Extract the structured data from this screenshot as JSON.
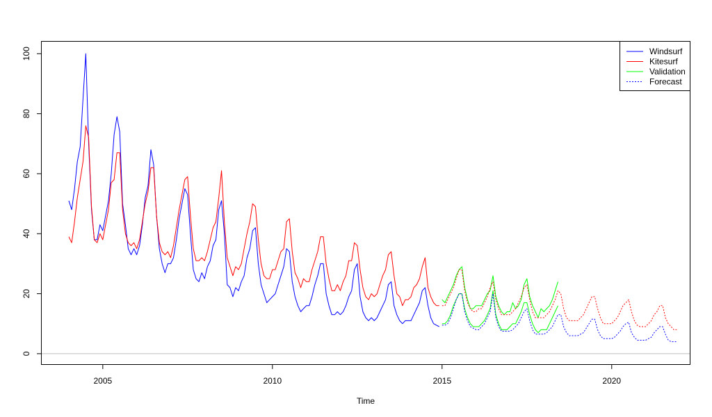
{
  "chart_data": {
    "type": "line",
    "title": "",
    "xlabel": "Time",
    "ylabel": "",
    "xlim": [
      2003.2,
      2022.3
    ],
    "ylim": [
      -3.5,
      104
    ],
    "x_ticks": [
      2005,
      2010,
      2015,
      2020
    ],
    "y_ticks": [
      0,
      20,
      40,
      60,
      80,
      100
    ],
    "reference_line": {
      "y": 0,
      "color": "#bebebe"
    },
    "legend": {
      "position": "top-right",
      "entries": [
        {
          "label": "Windsurf",
          "color": "#0000ff",
          "style": "solid"
        },
        {
          "label": "Kitesurf",
          "color": "#ff0000",
          "style": "solid"
        },
        {
          "label": "Validation",
          "color": "#00ff00",
          "style": "solid"
        },
        {
          "label": "Forecast",
          "color": "#0000ff",
          "style": "dotted"
        }
      ]
    },
    "series": [
      {
        "name": "Windsurf",
        "color": "#0000ff",
        "style": "solid",
        "start": [
          2004,
          1
        ],
        "values": [
          51,
          48,
          55,
          64,
          69,
          85,
          100,
          70,
          48,
          38,
          38,
          43,
          41,
          46,
          51,
          60,
          73,
          79,
          74,
          50,
          43,
          35,
          33,
          35,
          33,
          36,
          43,
          52,
          56,
          68,
          63,
          46,
          35,
          30,
          27,
          30,
          30,
          32,
          38,
          45,
          50,
          55,
          53,
          40,
          28,
          25,
          24,
          27,
          25,
          29,
          31,
          36,
          38,
          48,
          51,
          40,
          23,
          22,
          19,
          22,
          21,
          24,
          26,
          32,
          35,
          41,
          42,
          30,
          23,
          20,
          17,
          18,
          19,
          20,
          23,
          26,
          29,
          35,
          34,
          24,
          19,
          16,
          14,
          15,
          16,
          16,
          19,
          23,
          26,
          30,
          30,
          20,
          16,
          13,
          13,
          14,
          13,
          14,
          16,
          19,
          21,
          28,
          30,
          19,
          14,
          12,
          11,
          12,
          11,
          12,
          14,
          16,
          18,
          23,
          24,
          16,
          13,
          11,
          10,
          11,
          11,
          11,
          13,
          15,
          17,
          21,
          22,
          16,
          12,
          10,
          9.5,
          9
        ]
      },
      {
        "name": "Kitesurf",
        "color": "#ff0000",
        "style": "solid",
        "start": [
          2004,
          1
        ],
        "values": [
          39,
          37,
          44,
          52,
          58,
          64,
          76,
          72,
          49,
          38,
          37,
          40,
          38,
          43,
          48,
          57,
          58,
          67,
          67,
          48,
          40,
          37,
          36,
          37,
          35,
          38,
          44,
          50,
          54,
          62,
          62,
          46,
          37,
          34,
          33,
          34,
          32,
          36,
          42,
          48,
          53,
          58,
          59,
          46,
          35,
          31,
          31,
          32,
          31,
          34,
          38,
          42,
          44,
          52,
          61,
          44,
          32,
          29,
          26,
          29,
          28,
          30,
          35,
          40,
          44,
          50,
          49,
          38,
          30,
          26,
          25,
          25,
          28,
          28,
          31,
          34,
          35,
          44,
          45,
          34,
          27,
          25,
          22,
          25,
          24,
          24,
          28,
          31,
          34,
          39,
          39,
          30,
          25,
          21,
          21,
          23,
          21,
          24,
          26,
          31,
          31,
          37,
          36,
          28,
          22,
          19,
          18,
          20,
          19,
          20,
          23,
          26,
          28,
          33,
          34,
          26,
          20,
          19,
          16,
          18,
          18,
          19,
          22,
          23,
          25,
          29,
          32,
          22,
          19,
          17,
          16,
          16
        ]
      },
      {
        "name": "Validation (Kitesurf)",
        "color": "#00ff00",
        "style": "solid",
        "start": [
          2015,
          1
        ],
        "values": [
          18,
          17,
          19,
          21,
          23,
          26,
          28,
          29,
          22,
          18,
          15,
          15,
          16,
          16,
          16,
          18,
          20,
          21,
          26,
          19,
          16,
          14,
          13,
          14,
          14,
          17,
          15,
          16,
          18,
          23,
          25,
          19,
          16,
          14,
          12,
          15,
          14,
          15,
          16,
          18,
          21,
          24
        ]
      },
      {
        "name": "Validation (Windsurf)",
        "color": "#00ff00",
        "style": "solid",
        "start": [
          2015,
          1
        ],
        "values": [
          10,
          10,
          11,
          13,
          16,
          18,
          20,
          20,
          15,
          12,
          10,
          9,
          9,
          9,
          10,
          11,
          13,
          15,
          21,
          13,
          10,
          8,
          8,
          8,
          9,
          10,
          10,
          12,
          14,
          17,
          17,
          13,
          10,
          8,
          7,
          8,
          8,
          8,
          10,
          12,
          14,
          16
        ]
      },
      {
        "name": "Forecast (Kitesurf)",
        "color": "#ff0000",
        "style": "dotted",
        "start": [
          2015,
          1
        ],
        "values": [
          16,
          16,
          18,
          20,
          22,
          25,
          28,
          28,
          21,
          17,
          15,
          14,
          14,
          15,
          15,
          17,
          19,
          22,
          24,
          18,
          15,
          13,
          13,
          13,
          13,
          14,
          15,
          17,
          19,
          22,
          23,
          18,
          14,
          12,
          12,
          12,
          12,
          13,
          14,
          16,
          18,
          21,
          20,
          15,
          12,
          11,
          11,
          11,
          11,
          12,
          13,
          15,
          17,
          19,
          19,
          15,
          12,
          10,
          10,
          10,
          10,
          11,
          12,
          14,
          16,
          17,
          18,
          14,
          11,
          9.5,
          9,
          9,
          9,
          10,
          11,
          13,
          14,
          16,
          16,
          12,
          10,
          9,
          8,
          8
        ]
      },
      {
        "name": "Forecast (Windsurf)",
        "color": "#0000ff",
        "style": "dotted",
        "start": [
          2015,
          1
        ],
        "values": [
          9.5,
          9.5,
          10,
          12,
          15,
          18,
          20,
          20,
          14,
          11,
          9,
          8.5,
          8,
          8,
          9,
          10,
          12,
          14,
          20,
          12,
          9,
          7.5,
          7.5,
          7.5,
          7.5,
          8,
          9,
          10,
          12,
          14,
          15,
          11,
          8,
          6.5,
          6.5,
          6.5,
          6.5,
          7,
          8,
          9,
          11,
          13,
          13,
          9,
          7,
          6,
          6,
          6,
          6,
          6.5,
          7,
          8.5,
          10,
          11.5,
          11.5,
          8,
          6,
          5,
          5,
          5,
          5,
          5.5,
          6.5,
          7.5,
          9,
          10,
          10.5,
          7,
          5.5,
          4.5,
          4.5,
          4.5,
          4.5,
          5,
          5.5,
          7,
          8,
          9,
          9,
          6.5,
          4.5,
          4,
          4,
          4
        ]
      }
    ]
  }
}
